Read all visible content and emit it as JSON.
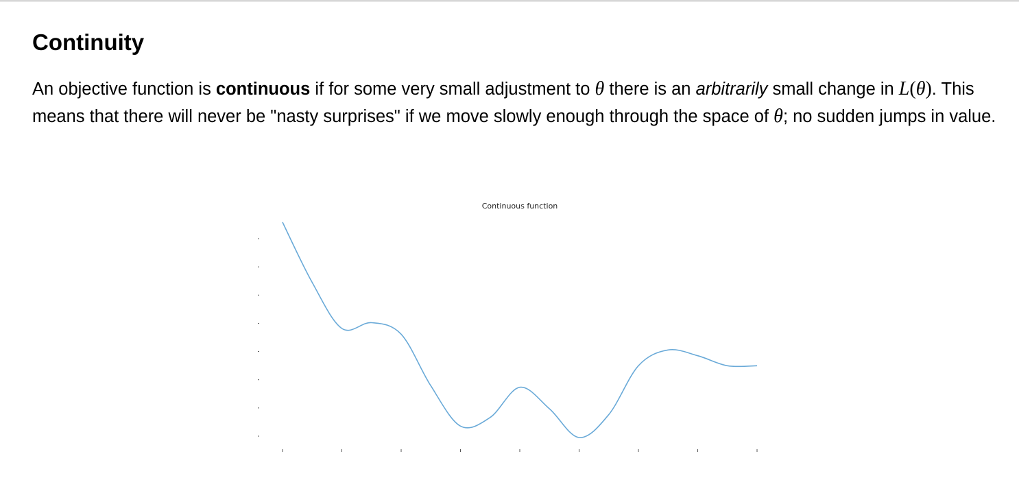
{
  "section": {
    "title": "Continuity"
  },
  "paragraph": {
    "t1": "An objective function is ",
    "bold": "continuous",
    "t2": " if for some very small adjustment to ",
    "theta1": "θ",
    "t3": " there is an ",
    "italic": "arbitrarily",
    "t4": " small change in ",
    "L_var": "L",
    "L_open": "(",
    "theta2": "θ",
    "L_close": ")",
    "t5": ". This means that there will never be \"nasty surprises\" if we move slowly enough through the space of ",
    "theta3": "θ",
    "t6": "; no sudden jumps in value."
  },
  "colors": {
    "curve": "#6aaad8",
    "tick": "#555555"
  },
  "chart_data": {
    "type": "line",
    "title": "Continuous function",
    "xlabel": "",
    "ylabel": "",
    "x_tick_count": 9,
    "y_tick_count": 8,
    "xlim": [
      0,
      8
    ],
    "ylim": [
      0,
      7.5
    ],
    "grid": false,
    "series": [
      {
        "x": [
          0,
          0.5,
          1,
          1.5,
          2,
          2.5,
          3,
          3.5,
          4,
          4.5,
          5,
          5.5,
          6,
          6.5,
          7,
          7.5,
          8
        ],
        "y": [
          7.5,
          5.4,
          3.8,
          4.0,
          3.6,
          1.8,
          0.4,
          0.7,
          1.75,
          1.0,
          0.0,
          0.8,
          2.5,
          3.05,
          2.85,
          2.5,
          2.5
        ]
      }
    ]
  }
}
